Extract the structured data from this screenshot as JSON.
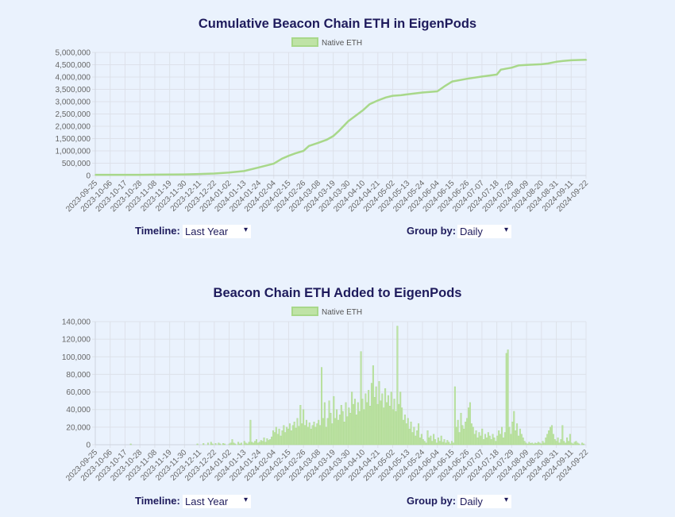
{
  "colors": {
    "series": "#a8d88a",
    "series_fill": "#bfe3a6",
    "title": "#1e1b5c",
    "grid": "#dde1ea",
    "background": "#eaf2fd"
  },
  "charts": {
    "cumulative": {
      "title": "Cumulative Beacon Chain ETH in EigenPods",
      "legend": "Native ETH",
      "yticks": [
        "0",
        "500,000",
        "1,000,000",
        "1,500,000",
        "2,000,000",
        "2,500,000",
        "3,000,000",
        "3,500,000",
        "4,000,000",
        "4,500,000",
        "5,000,000"
      ]
    },
    "daily": {
      "title": "Beacon Chain ETH Added to EigenPods",
      "legend": "Native ETH",
      "yticks": [
        "0",
        "20,000",
        "40,000",
        "60,000",
        "80,000",
        "100,000",
        "120,000",
        "140,000"
      ]
    }
  },
  "controls": {
    "timeline_label": "Timeline:",
    "timeline_value": "Last Year",
    "groupby_label": "Group by:",
    "groupby_value": "Daily"
  },
  "chart_data": [
    {
      "type": "line",
      "title": "Cumulative Beacon Chain ETH in EigenPods",
      "ylim": [
        0,
        5000000
      ],
      "x_tick_labels": [
        "2023-09-25",
        "2023-10-06",
        "2023-10-17",
        "2023-10-28",
        "2023-11-08",
        "2023-11-19",
        "2023-11-30",
        "2023-12-11",
        "2023-12-22",
        "2024-01-02",
        "2024-01-13",
        "2024-01-24",
        "2024-02-04",
        "2024-02-15",
        "2024-02-26",
        "2024-03-08",
        "2024-03-19",
        "2024-03-30",
        "2024-04-10",
        "2024-04-21",
        "2024-05-02",
        "2024-05-13",
        "2024-05-24",
        "2024-06-04",
        "2024-06-15",
        "2024-06-26",
        "2024-07-07",
        "2024-07-18",
        "2024-07-29",
        "2024-08-09",
        "2024-08-20",
        "2024-08-31",
        "2024-09-11",
        "2024-09-22"
      ],
      "x": [
        "2023-09-25",
        "2023-10-06",
        "2023-10-17",
        "2023-10-28",
        "2023-11-08",
        "2023-11-19",
        "2023-11-30",
        "2023-12-11",
        "2023-12-22",
        "2024-01-02",
        "2024-01-13",
        "2024-01-24",
        "2024-02-04",
        "2024-02-10",
        "2024-02-15",
        "2024-02-20",
        "2024-02-26",
        "2024-03-01",
        "2024-03-08",
        "2024-03-14",
        "2024-03-19",
        "2024-03-23",
        "2024-03-30",
        "2024-04-05",
        "2024-04-10",
        "2024-04-15",
        "2024-04-21",
        "2024-04-27",
        "2024-05-02",
        "2024-05-08",
        "2024-05-13",
        "2024-05-24",
        "2024-06-04",
        "2024-06-10",
        "2024-06-15",
        "2024-06-26",
        "2024-07-07",
        "2024-07-18",
        "2024-07-21",
        "2024-07-29",
        "2024-08-03",
        "2024-08-09",
        "2024-08-20",
        "2024-08-25",
        "2024-08-31",
        "2024-09-05",
        "2024-09-11",
        "2024-09-22",
        "2024-09-25"
      ],
      "series": [
        {
          "name": "Native ETH",
          "values": [
            30000,
            30000,
            30000,
            30000,
            35000,
            40000,
            45000,
            60000,
            80000,
            120000,
            180000,
            330000,
            480000,
            680000,
            800000,
            900000,
            1000000,
            1200000,
            1330000,
            1450000,
            1600000,
            1800000,
            2200000,
            2450000,
            2650000,
            2900000,
            3050000,
            3170000,
            3240000,
            3260000,
            3300000,
            3370000,
            3420000,
            3650000,
            3820000,
            3930000,
            4020000,
            4100000,
            4300000,
            4380000,
            4470000,
            4490000,
            4520000,
            4550000,
            4620000,
            4650000,
            4680000,
            4700000,
            4710000
          ]
        }
      ]
    },
    {
      "type": "bar",
      "title": "Beacon Chain ETH Added to EigenPods",
      "ylim": [
        0,
        140000
      ],
      "x_tick_labels": [
        "2023-09-25",
        "2023-10-06",
        "2023-10-17",
        "2023-10-28",
        "2023-11-08",
        "2023-11-19",
        "2023-11-30",
        "2023-12-11",
        "2023-12-22",
        "2024-01-02",
        "2024-01-13",
        "2024-01-24",
        "2024-02-04",
        "2024-02-15",
        "2024-02-26",
        "2024-03-08",
        "2024-03-19",
        "2024-03-30",
        "2024-04-10",
        "2024-04-21",
        "2024-05-02",
        "2024-05-13",
        "2024-05-24",
        "2024-06-04",
        "2024-06-15",
        "2024-06-26",
        "2024-07-07",
        "2024-07-18",
        "2024-07-29",
        "2024-08-09",
        "2024-08-20",
        "2024-08-31",
        "2024-09-11",
        "2024-09-22"
      ],
      "series": [
        {
          "name": "Native ETH",
          "values": [
            0,
            0,
            0,
            0,
            0,
            0,
            0,
            0,
            0,
            0,
            0,
            0,
            0,
            0,
            0,
            0,
            0,
            0,
            0,
            0,
            0,
            0,
            0,
            1000,
            0,
            0,
            0,
            0,
            0,
            0,
            0,
            0,
            0,
            0,
            0,
            0,
            0,
            0,
            0,
            0,
            0,
            0,
            0,
            0,
            0,
            0,
            0,
            0,
            0,
            0,
            0,
            0,
            0,
            0,
            0,
            0,
            0,
            0,
            0,
            0,
            0,
            0,
            0,
            0,
            0,
            0,
            0,
            1000,
            0,
            0,
            0,
            1500,
            0,
            0,
            2000,
            0,
            3000,
            1000,
            0,
            1500,
            0,
            2000,
            1000,
            0,
            1500,
            1000,
            0,
            0,
            1000,
            2000,
            6000,
            2000,
            1000,
            0,
            3000,
            1000,
            2000,
            0,
            4000,
            2000,
            1000,
            3000,
            28000,
            3000,
            2000,
            4000,
            6000,
            2000,
            3000,
            5000,
            4000,
            8000,
            3000,
            7000,
            5000,
            6000,
            9000,
            16000,
            14000,
            20000,
            12000,
            18000,
            10000,
            16000,
            22000,
            14000,
            20000,
            18000,
            24000,
            16000,
            22000,
            26000,
            19000,
            30000,
            21000,
            45000,
            24000,
            40000,
            22000,
            28000,
            20000,
            25000,
            18000,
            22000,
            26000,
            20000,
            24000,
            28000,
            22000,
            88000,
            30000,
            48000,
            20000,
            30000,
            50000,
            36000,
            24000,
            55000,
            30000,
            40000,
            28000,
            34000,
            45000,
            38000,
            26000,
            48000,
            32000,
            42000,
            36000,
            60000,
            46000,
            52000,
            34000,
            48000,
            38000,
            106000,
            52000,
            40000,
            58000,
            48000,
            62000,
            44000,
            70000,
            90000,
            54000,
            66000,
            46000,
            72000,
            50000,
            58000,
            42000,
            64000,
            48000,
            56000,
            44000,
            60000,
            40000,
            52000,
            38000,
            135000,
            46000,
            60000,
            42000,
            28000,
            34000,
            24000,
            30000,
            18000,
            26000,
            14000,
            20000,
            10000,
            16000,
            24000,
            8000,
            12000,
            6000,
            4000,
            2000,
            16000,
            8000,
            10000,
            4000,
            12000,
            6000,
            2000,
            8000,
            4000,
            10000,
            3000,
            6000,
            2000,
            5000,
            3000,
            1000,
            4000,
            2000,
            66000,
            20000,
            28000,
            14000,
            36000,
            22000,
            18000,
            26000,
            30000,
            42000,
            48000,
            24000,
            20000,
            12000,
            16000,
            8000,
            14000,
            10000,
            18000,
            6000,
            12000,
            8000,
            14000,
            10000,
            6000,
            12000,
            8000,
            4000,
            10000,
            16000,
            12000,
            20000,
            8000,
            14000,
            104000,
            108000,
            20000,
            12000,
            26000,
            38000,
            16000,
            24000,
            10000,
            18000,
            12000,
            8000,
            4000,
            2000,
            1000,
            3000,
            1500,
            2000,
            1000,
            2000,
            1500,
            3000,
            2000,
            1000,
            4000,
            2000,
            8000,
            12000,
            16000,
            20000,
            22000,
            12000,
            6000,
            4000,
            8000,
            2000,
            6000,
            22000,
            4000,
            2000,
            8000,
            4000,
            12000,
            2000,
            1000,
            3000,
            4000,
            2000,
            1000,
            0,
            2000,
            1000,
            0
          ]
        }
      ]
    }
  ]
}
